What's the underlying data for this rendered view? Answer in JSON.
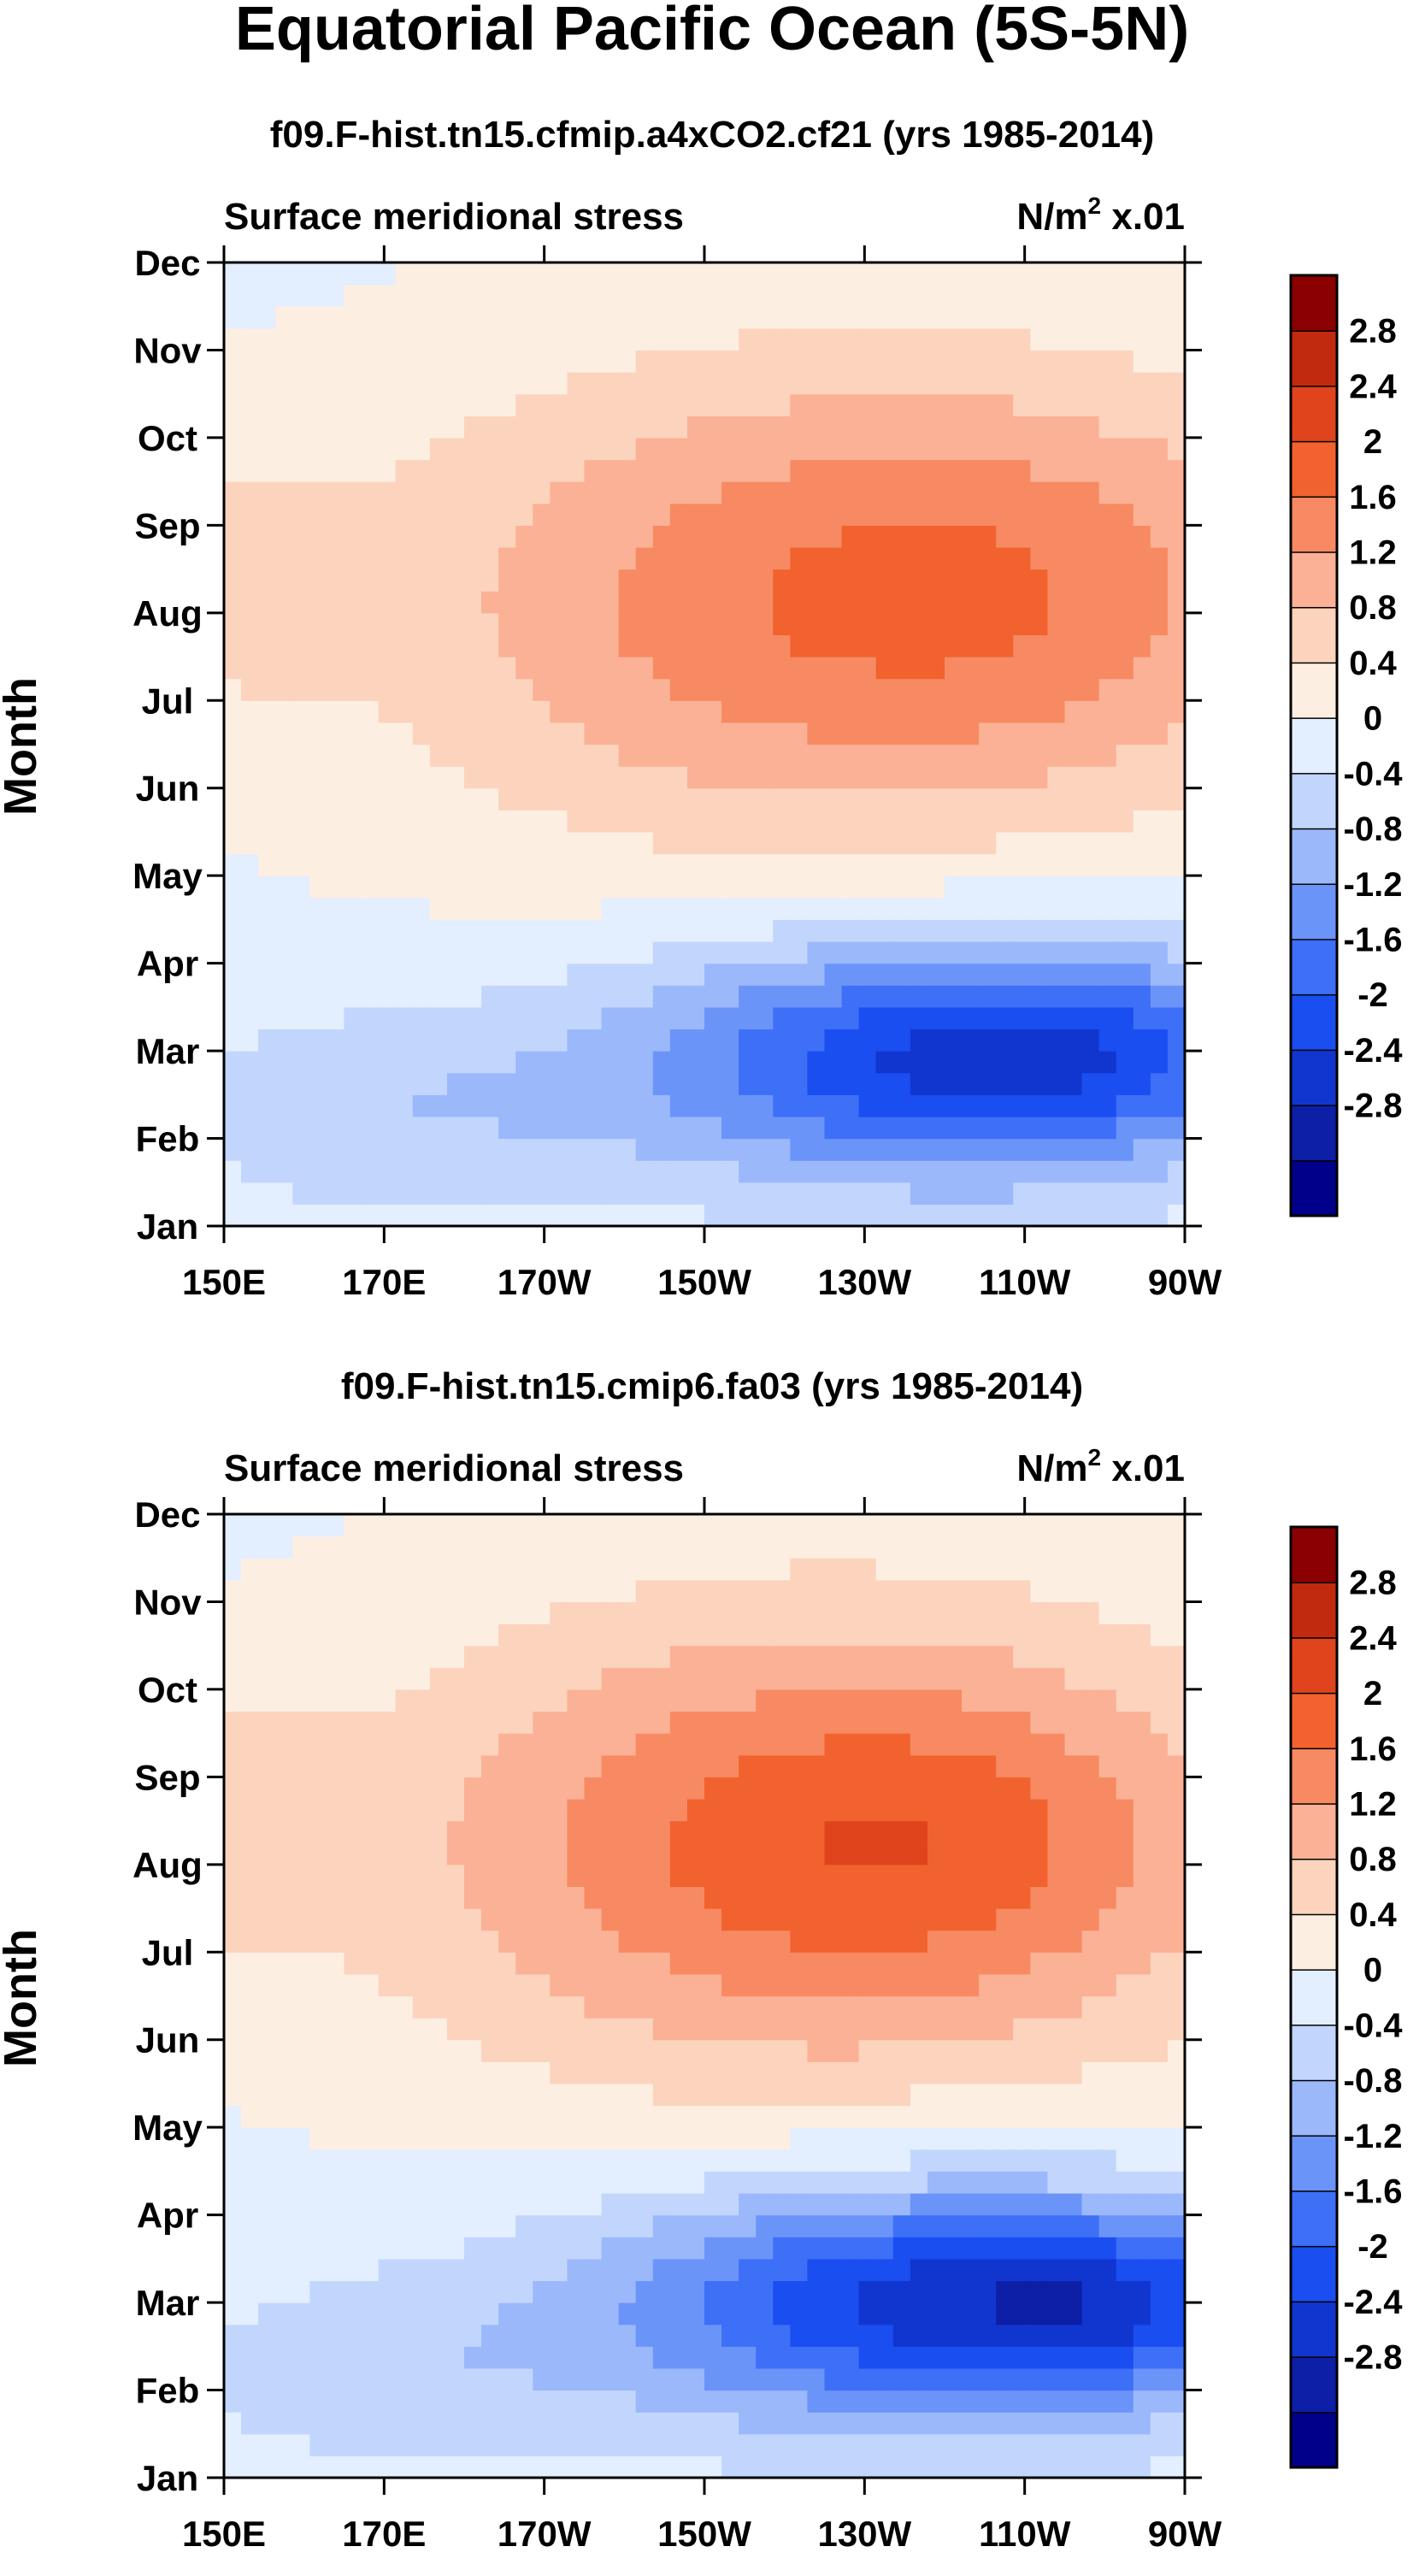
{
  "page_title": "Equatorial Pacific Ocean (5S-5N)",
  "colors": {
    "levels": [
      "#00008b",
      "#0d1fa6",
      "#1136cf",
      "#1a4ef0",
      "#3d6ff7",
      "#6b94f9",
      "#9bb8fb",
      "#c2d6fd",
      "#e3eefe",
      "#fdeee2",
      "#fcd3bd",
      "#fbb195",
      "#f78a62",
      "#f1622f",
      "#e0441c",
      "#c12a0e",
      "#8b0000"
    ]
  },
  "chart_data": [
    {
      "type": "heatmap",
      "title": "f09.F-hist.tn15.cfmip.a4xCO2.cf21 (yrs 1985-2014)",
      "left_string": "Surface meridional stress",
      "right_string_prefix": "N/m",
      "right_string_exp": "2",
      "right_string_suffix": " x.01",
      "xlabel": "",
      "ylabel": "Month",
      "xticks": [
        "150E",
        "170E",
        "170W",
        "150W",
        "130W",
        "110W",
        "90W"
      ],
      "yticks": [
        "Jan",
        "Feb",
        "Mar",
        "Apr",
        "May",
        "Jun",
        "Jul",
        "Aug",
        "Sep",
        "Oct",
        "Nov",
        "Dec"
      ],
      "colorbar_labels": [
        "2.8",
        "2.4",
        "2",
        "1.6",
        "1.2",
        "0.8",
        "0.4",
        "0",
        "-0.4",
        "-0.8",
        "-1.2",
        "-1.6",
        "-2",
        "-2.4",
        "-2.8"
      ],
      "features": [
        {
          "lon": 225,
          "month": 7.1,
          "sx": 55,
          "sy": 2.8,
          "amp": 1.6
        },
        {
          "lon": 258,
          "month": 7.4,
          "sx": 35,
          "sy": 2.2,
          "amp": 0.5
        },
        {
          "lon": 150,
          "month": 7.4,
          "sx": 14,
          "sy": 1.6,
          "amp": 0.5
        },
        {
          "lon": 240,
          "month": 1.9,
          "sx": 40,
          "sy": 1.4,
          "amp": -2.3
        },
        {
          "lon": 260,
          "month": 2.0,
          "sx": 22,
          "sy": 1.0,
          "amp": -0.6
        },
        {
          "lon": 170,
          "month": 1.3,
          "sx": 30,
          "sy": 1.2,
          "amp": -0.6
        }
      ]
    },
    {
      "type": "heatmap",
      "title": "f09.F-hist.tn15.cmip6.fa03 (yrs 1985-2014)",
      "left_string": "Surface meridional stress",
      "right_string_prefix": "N/m",
      "right_string_exp": "2",
      "right_string_suffix": " x.01",
      "xlabel": "",
      "ylabel": "Month",
      "xticks": [
        "150E",
        "170E",
        "170W",
        "150W",
        "130W",
        "110W",
        "90W"
      ],
      "yticks": [
        "Jan",
        "Feb",
        "Mar",
        "Apr",
        "May",
        "Jun",
        "Jul",
        "Aug",
        "Sep",
        "Oct",
        "Nov",
        "Dec"
      ],
      "colorbar_labels": [
        "2.8",
        "2.4",
        "2",
        "1.6",
        "1.2",
        "0.8",
        "0.4",
        "0",
        "-0.4",
        "-0.8",
        "-1.2",
        "-1.6",
        "-2",
        "-2.4",
        "-2.8"
      ],
      "features": [
        {
          "lon": 225,
          "month": 7.2,
          "sx": 55,
          "sy": 2.8,
          "amp": 1.8
        },
        {
          "lon": 240,
          "month": 7.3,
          "sx": 30,
          "sy": 1.6,
          "amp": 0.4
        },
        {
          "lon": 150,
          "month": 7.4,
          "sx": 14,
          "sy": 1.6,
          "amp": 0.5
        },
        {
          "lon": 240,
          "month": 2.0,
          "sx": 42,
          "sy": 1.4,
          "amp": -2.5
        },
        {
          "lon": 262,
          "month": 2.0,
          "sx": 18,
          "sy": 0.9,
          "amp": -0.7
        },
        {
          "lon": 170,
          "month": 1.2,
          "sx": 30,
          "sy": 1.2,
          "amp": -0.5
        }
      ]
    }
  ]
}
